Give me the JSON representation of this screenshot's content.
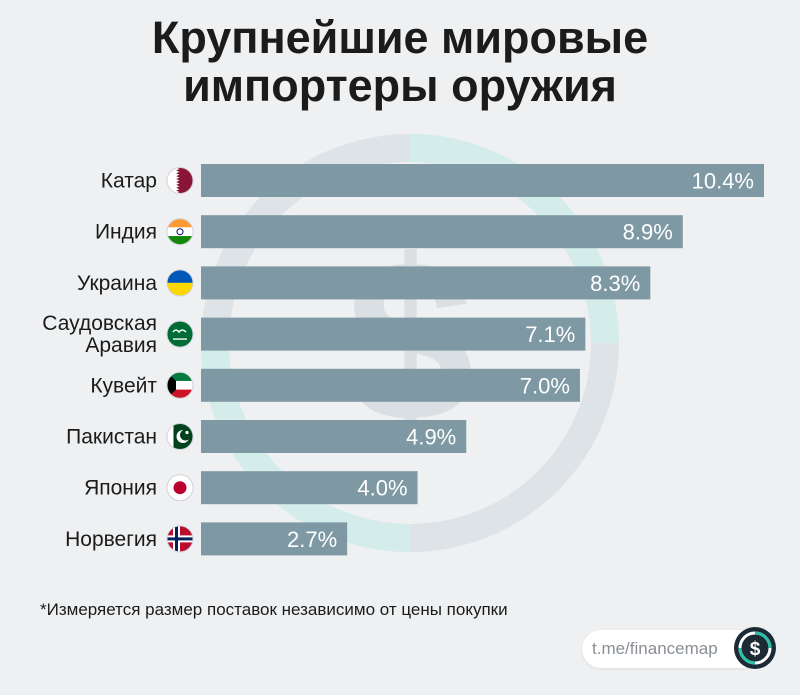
{
  "title_lines": [
    "Крупнейшие мировые",
    "импортеры оружия"
  ],
  "chart_data": {
    "type": "bar",
    "orientation": "horizontal",
    "categories": [
      [
        "Катар"
      ],
      [
        "Индия"
      ],
      [
        "Украина"
      ],
      [
        "Саудовская",
        "Аравия"
      ],
      [
        "Кувейт"
      ],
      [
        "Пакистан"
      ],
      [
        "Япония"
      ],
      [
        "Норвегия"
      ]
    ],
    "values": [
      10.4,
      8.9,
      8.3,
      7.1,
      7.0,
      4.9,
      4.0,
      2.7
    ],
    "value_labels": [
      "10.4%",
      "8.9%",
      "8.3%",
      "7.1%",
      "7.0%",
      "4.9%",
      "4.0%",
      "2.7%"
    ],
    "flag_icons": [
      "qatar-flag-icon",
      "india-flag-icon",
      "ukraine-flag-icon",
      "saudi-arabia-flag-icon",
      "kuwait-flag-icon",
      "pakistan-flag-icon",
      "japan-flag-icon",
      "norway-flag-icon"
    ],
    "bar_color": "#7e99a3",
    "xlim": [
      0,
      10.4
    ],
    "grid": false,
    "legend": "none"
  },
  "footnote": "*Измеряется размер поставок независимо от цены покупки",
  "source": "t.me/financemap",
  "colors": {
    "background": "#eef0f2",
    "accent": "#2bc0a4",
    "logo_dark": "#1b2a35"
  }
}
